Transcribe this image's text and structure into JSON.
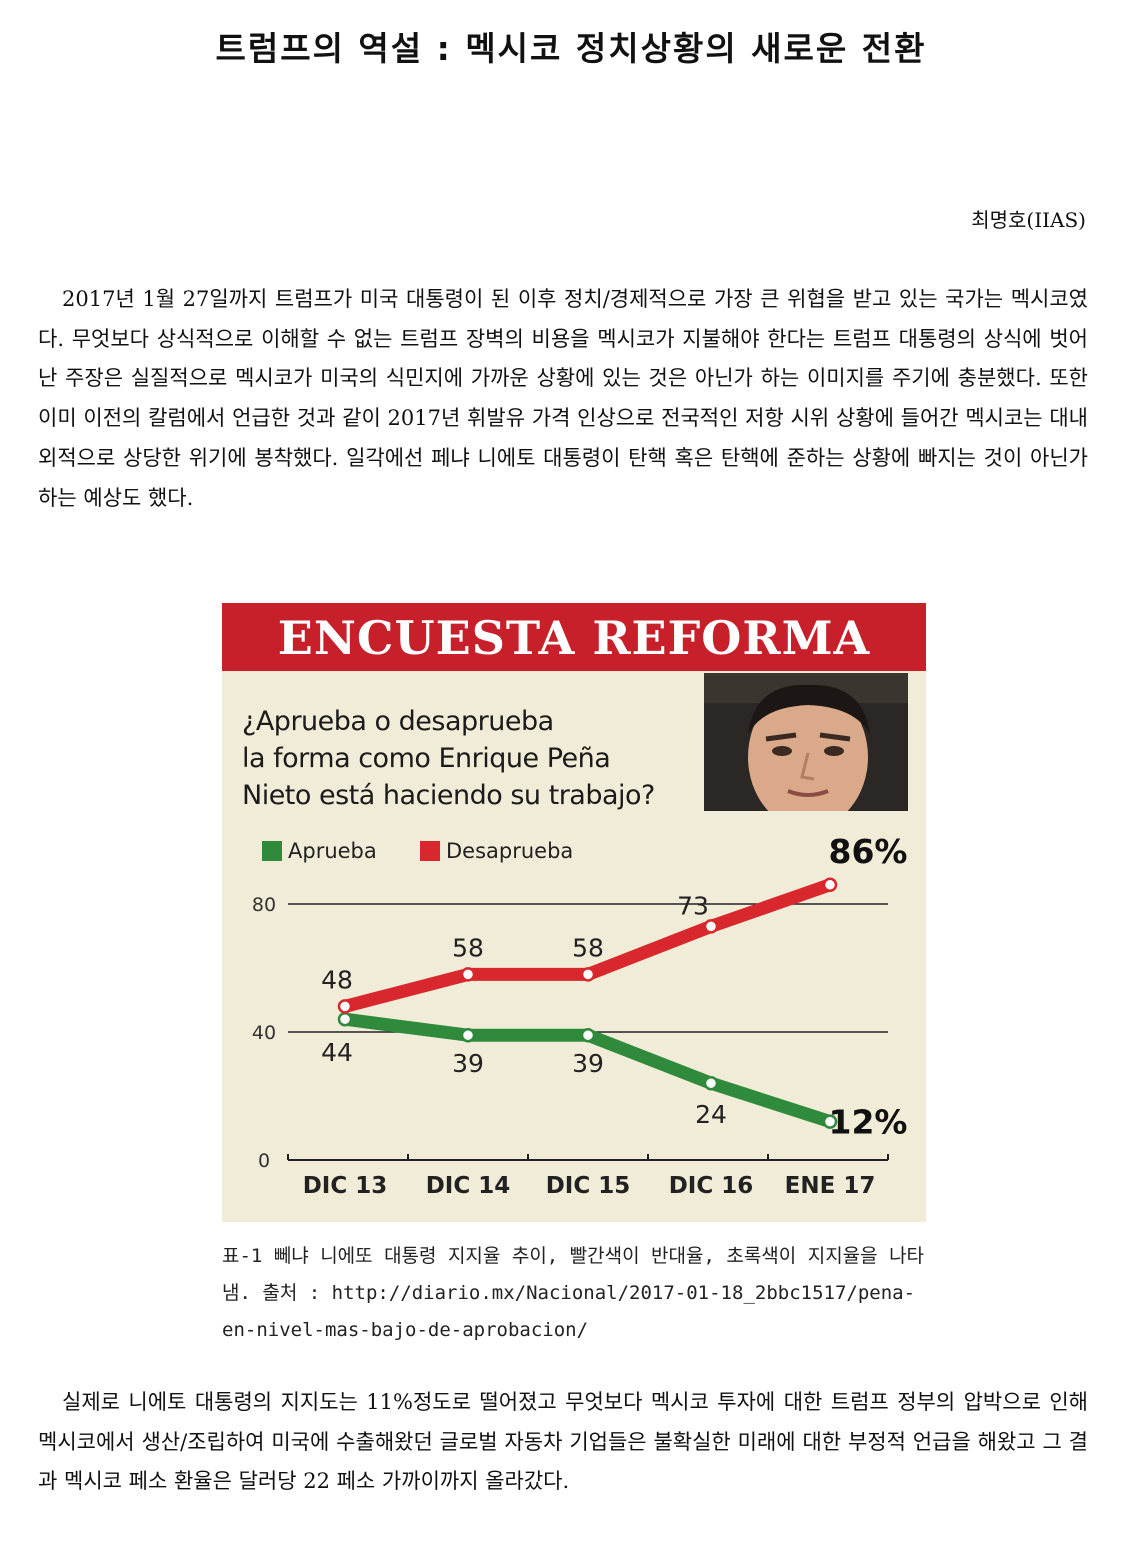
{
  "document": {
    "title": "트럼프의 역설 : 멕시코 정치상황의 새로운 전환",
    "author": "최명호(IIAS)",
    "paragraph1": "2017년 1월 27일까지 트럼프가 미국 대통령이 된 이후 정치/경제적으로 가장 큰 위협을 받고 있는 국가는 멕시코였다. 무엇보다 상식적으로 이해할 수 없는 트럼프 장벽의 비용을 멕시코가 지불해야 한다는 트럼프 대통령의 상식에 벗어난 주장은 실질적으로 멕시코가 미국의 식민지에 가까운 상황에 있는 것은 아닌가 하는 이미지를 주기에 충분했다. 또한 이미 이전의 칼럼에서 언급한 것과 같이 2017년 휘발유 가격 인상으로 전국적인 저항 시위 상황에 들어간 멕시코는 대내외적으로 상당한 위기에 봉착했다. 일각에선 페냐 니에토 대통령이 탄핵 혹은 탄핵에 준하는 상황에 빠지는 것이 아닌가 하는 예상도 했다.",
    "caption": "표-1 뻬냐 니에또 대통령 지지율 추이, 빨간색이 반대율, 초록색이 지지율을 나타냄. 출처 : http://diario.mx/Nacional/2017-01-18_2bbc1517/pena-en-nivel-mas-bajo-de-aprobacion/",
    "paragraph2": "실제로 니에토 대통령의 지지도는 11%정도로 떨어졌고 무엇보다 멕시코 투자에 대한 트럼프 정부의 압박으로 인해 멕시코에서 생산/조립하여 미국에 수출해왔던 글로벌 자동차 기업들은 불확실한 미래에 대한 부정적 언급을 해왔고 그 결과 멕시코 페소 환율은 달러당 22 페소 가까이까지 올라갔다."
  },
  "figure": {
    "banner": "ENCUESTA REFORMA",
    "question_lines": [
      "¿Aprueba o desaprueba",
      "la forma como Enrique Peña",
      "Nieto está haciendo su trabajo?"
    ],
    "photo": "portrait-photo",
    "colors": {
      "banner": "#c8202b",
      "aprueba": "#2f8a3c",
      "desaprueba": "#d9272e",
      "background": "#f1ecd7"
    }
  },
  "chart_data": {
    "type": "line",
    "categories": [
      "DIC 13",
      "DIC 14",
      "DIC 15",
      "DIC 16",
      "ENE 17"
    ],
    "series": [
      {
        "name": "Aprueba",
        "values": [
          44,
          39,
          39,
          24,
          12
        ],
        "labels": [
          "44",
          "39",
          "39",
          "24",
          "12%"
        ]
      },
      {
        "name": "Desaprueba",
        "values": [
          48,
          58,
          58,
          73,
          86
        ],
        "labels": [
          "48",
          "58",
          "58",
          "73",
          "86%"
        ]
      }
    ],
    "yticks": [
      0,
      40,
      80
    ],
    "ylim": [
      0,
      90
    ],
    "grid": true,
    "legend": "top-left"
  }
}
